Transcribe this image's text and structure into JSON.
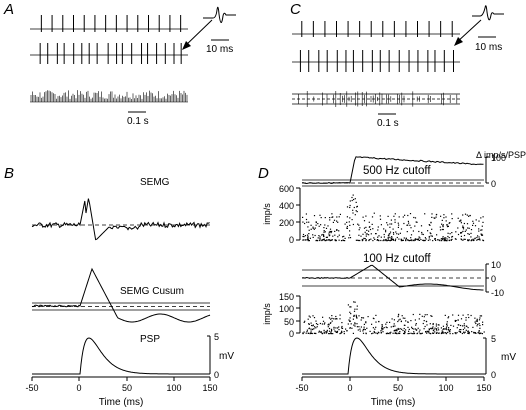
{
  "figure": {
    "panels": {
      "A": {
        "label": "A",
        "scale_spike": "10 ms",
        "scale_time": "0.1 s"
      },
      "C": {
        "label": "C",
        "scale_spike": "10 ms",
        "scale_time": "0.1 s"
      },
      "B": {
        "label": "B",
        "trace_labels": {
          "semg": "SEMG",
          "cusum": "SEMG Cusum",
          "psp": "PSP"
        },
        "psp_axis": {
          "unit": "mV",
          "ticks": [
            "5",
            "0"
          ]
        },
        "x_axis": {
          "label": "Time (ms)",
          "ticks": [
            "-50",
            "0",
            "50",
            "100",
            "150"
          ]
        }
      },
      "D": {
        "label": "D",
        "right_axis_label": "Δ imp/s/PSP",
        "top": {
          "title": "500 Hz cutoff",
          "cusum_ticks": [
            "100",
            "0"
          ],
          "rate_ticks": [
            "600",
            "400",
            "200",
            "0"
          ],
          "rate_label": "imp/s"
        },
        "bottom": {
          "title": "100 Hz cutoff",
          "cusum_ticks": [
            "10",
            "0",
            "-10"
          ],
          "rate_ticks": [
            "150",
            "100",
            "50",
            "0"
          ],
          "rate_label": "imp/s"
        },
        "psp_axis": {
          "unit": "mV",
          "ticks": [
            "5",
            "0"
          ]
        },
        "x_axis": {
          "label": "Time (ms)",
          "ticks": [
            "-50",
            "0",
            "50",
            "100",
            "150"
          ]
        }
      }
    }
  }
}
